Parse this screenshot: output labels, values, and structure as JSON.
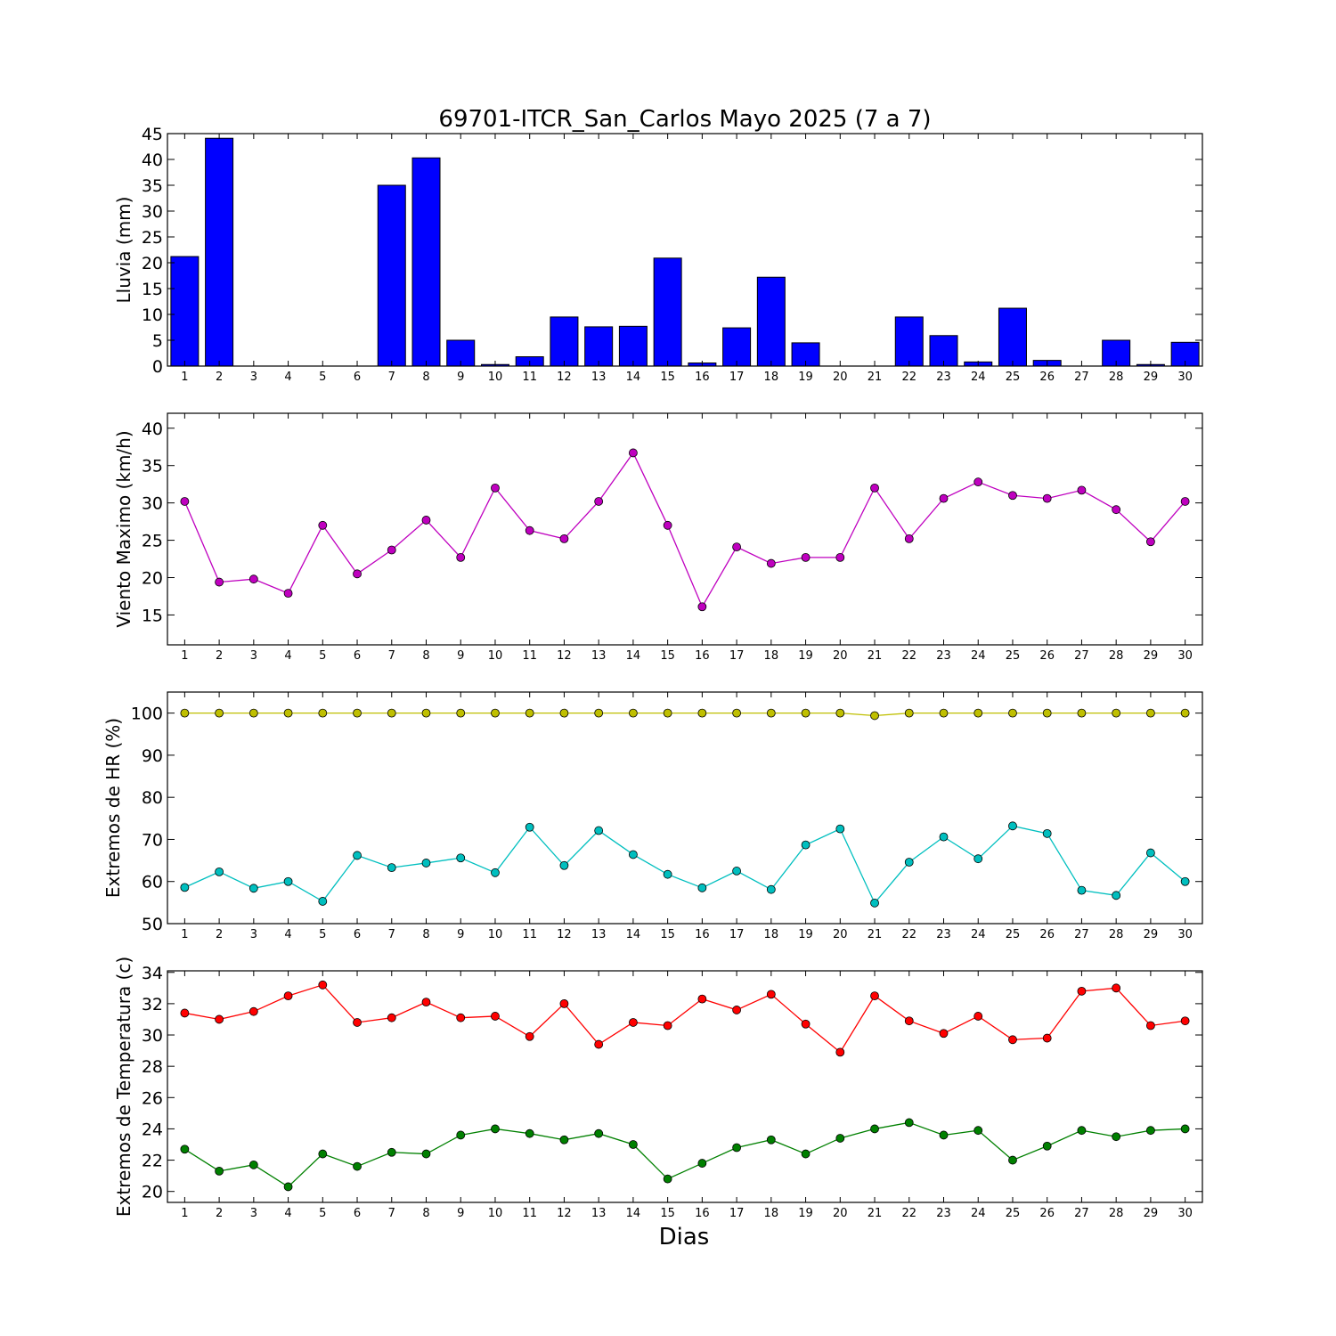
{
  "chart_data": [
    {
      "type": "bar",
      "title": "69701-ITCR_San_Carlos Mayo 2025  (7 a 7)",
      "ylabel": "Lluvia (mm)",
      "xlabel": "",
      "ylim": [
        0,
        45
      ],
      "yticks": [
        0,
        5,
        10,
        15,
        20,
        25,
        30,
        35,
        40,
        45
      ],
      "categories": [
        "1",
        "2",
        "3",
        "4",
        "5",
        "6",
        "7",
        "8",
        "9",
        "10",
        "11",
        "12",
        "13",
        "14",
        "15",
        "16",
        "17",
        "18",
        "19",
        "20",
        "21",
        "22",
        "23",
        "24",
        "25",
        "26",
        "27",
        "28",
        "29",
        "30"
      ],
      "values": [
        21.2,
        44.1,
        0,
        0,
        0,
        0,
        35.0,
        40.3,
        5.0,
        0.3,
        1.8,
        9.5,
        7.6,
        7.7,
        20.9,
        0.6,
        7.4,
        17.2,
        4.5,
        0,
        0,
        9.5,
        5.9,
        0.8,
        11.2,
        1.1,
        0,
        5.0,
        0.3,
        4.6
      ],
      "color": "#0000ff"
    },
    {
      "type": "line",
      "ylabel": "Viento Maximo (km/h)",
      "xlabel": "",
      "ylim": [
        11,
        42
      ],
      "yticks": [
        15,
        20,
        25,
        30,
        35,
        40
      ],
      "x": [
        "1",
        "2",
        "3",
        "4",
        "5",
        "6",
        "7",
        "8",
        "9",
        "10",
        "11",
        "12",
        "13",
        "14",
        "15",
        "16",
        "17",
        "18",
        "19",
        "20",
        "21",
        "22",
        "23",
        "24",
        "25",
        "26",
        "27",
        "28",
        "29",
        "30"
      ],
      "series": [
        {
          "values": [
            30.2,
            19.4,
            19.8,
            17.9,
            27.0,
            20.5,
            23.7,
            27.7,
            22.7,
            32.0,
            26.3,
            25.2,
            30.2,
            36.7,
            27.0,
            16.1,
            24.1,
            21.9,
            22.7,
            22.7,
            32.0,
            25.2,
            30.6,
            32.8,
            31.0,
            30.6,
            31.7,
            29.1,
            24.8,
            30.2
          ],
          "color": "#bf00bf"
        }
      ]
    },
    {
      "type": "line",
      "ylabel": "Extremos de HR (%)",
      "xlabel": "",
      "ylim": [
        50,
        105
      ],
      "yticks": [
        50,
        60,
        70,
        80,
        90,
        100
      ],
      "x": [
        "1",
        "2",
        "3",
        "4",
        "5",
        "6",
        "7",
        "8",
        "9",
        "10",
        "11",
        "12",
        "13",
        "14",
        "15",
        "16",
        "17",
        "18",
        "19",
        "20",
        "21",
        "22",
        "23",
        "24",
        "25",
        "26",
        "27",
        "28",
        "29",
        "30"
      ],
      "series": [
        {
          "values": [
            100,
            100,
            100,
            100,
            100,
            100,
            100,
            100,
            100,
            100,
            100,
            100,
            100,
            100,
            100,
            100,
            100,
            100,
            100,
            100,
            99.4,
            100,
            100,
            100,
            100,
            100,
            100,
            100,
            100,
            100
          ],
          "color": "#bfbf00"
        },
        {
          "values": [
            58.6,
            62.3,
            58.4,
            60.0,
            55.3,
            66.2,
            63.3,
            64.4,
            65.6,
            62.1,
            72.9,
            63.8,
            72.1,
            66.4,
            61.7,
            58.5,
            62.5,
            58.1,
            68.7,
            72.5,
            54.9,
            64.6,
            70.6,
            65.4,
            73.2,
            71.4,
            57.9,
            56.7,
            66.8,
            60.0
          ],
          "color": "#00bfbf"
        }
      ]
    },
    {
      "type": "line",
      "ylabel": "Extremos de Temperatura (c)",
      "xlabel": "Dias",
      "ylim": [
        19.3,
        34.1
      ],
      "yticks": [
        20,
        22,
        24,
        26,
        28,
        30,
        32,
        34
      ],
      "x": [
        "1",
        "2",
        "3",
        "4",
        "5",
        "6",
        "7",
        "8",
        "9",
        "10",
        "11",
        "12",
        "13",
        "14",
        "15",
        "16",
        "17",
        "18",
        "19",
        "20",
        "21",
        "22",
        "23",
        "24",
        "25",
        "26",
        "27",
        "28",
        "29",
        "30"
      ],
      "series": [
        {
          "values": [
            31.4,
            31.0,
            31.5,
            32.5,
            33.2,
            30.8,
            31.1,
            32.1,
            31.1,
            31.2,
            29.9,
            32.0,
            29.4,
            30.8,
            30.6,
            32.3,
            31.6,
            32.6,
            30.7,
            28.9,
            32.5,
            30.9,
            30.1,
            31.2,
            29.7,
            29.8,
            32.8,
            33.0,
            30.6,
            30.9
          ],
          "color": "#ff0000"
        },
        {
          "values": [
            22.7,
            21.3,
            21.7,
            20.3,
            22.4,
            21.6,
            22.5,
            22.4,
            23.6,
            24.0,
            23.7,
            23.3,
            23.7,
            23.0,
            20.8,
            21.8,
            22.8,
            23.3,
            22.4,
            23.4,
            24.0,
            24.4,
            23.6,
            23.9,
            22.0,
            22.9,
            23.9,
            23.5,
            23.9,
            24.0
          ],
          "color": "#008000"
        }
      ]
    }
  ]
}
